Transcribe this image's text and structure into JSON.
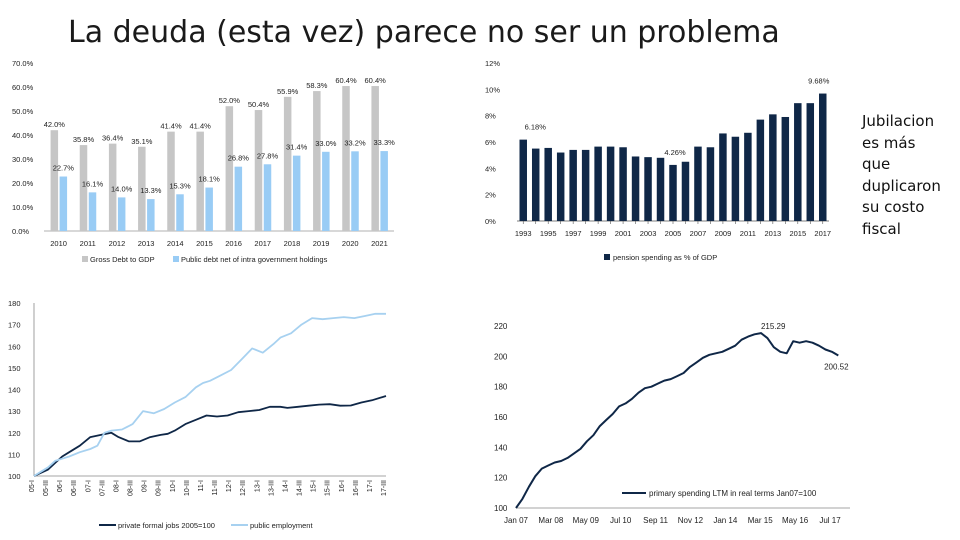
{
  "slide": {
    "title": "La deuda (esta vez) parece no ser un problema",
    "side_note": [
      "Jubilacion",
      "es más",
      "que",
      "duplicaron",
      "su costo",
      "fiscal"
    ]
  },
  "colors": {
    "gray_bar": "#c6c6c6",
    "light_blue": "#99ccf5",
    "navy": "#0f2747",
    "pale_line": "#a7d1f0"
  },
  "chart_data": [
    {
      "id": "debt",
      "type": "bar",
      "categories": [
        "2010",
        "2011",
        "2012",
        "2013",
        "2014",
        "2015",
        "2016",
        "2017",
        "2018",
        "2019",
        "2020",
        "2021"
      ],
      "series": [
        {
          "name": "Gross Debt to GDP",
          "values": [
            42.0,
            35.8,
            36.4,
            35.1,
            41.4,
            41.4,
            52.0,
            50.4,
            55.9,
            58.3,
            60.4,
            60.4
          ],
          "labels": [
            "42.0%",
            "35.8%",
            "36.4%",
            "35.1%",
            "41.4%",
            "41.4%",
            "52.0%",
            "50.4%",
            "55.9%",
            "58.3%",
            "60.4%",
            "60.4%"
          ]
        },
        {
          "name": "Public debt net of intra government holdings",
          "values": [
            22.7,
            16.1,
            14.0,
            13.3,
            15.3,
            18.1,
            26.8,
            27.8,
            31.4,
            33.0,
            33.2,
            33.3
          ],
          "labels": [
            "22.7%",
            "16.1%",
            "14.0%",
            "13.3%",
            "15.3%",
            "18.1%",
            "26.8%",
            "27.8%",
            "31.4%",
            "33.0%",
            "33.2%",
            "33.3%"
          ]
        }
      ],
      "yticks": [
        "70.0%",
        "60.0%",
        "50.0%",
        "40.0%",
        "30.0%",
        "20.0%",
        "10.0%",
        "0.0%"
      ],
      "ylim": [
        0,
        70
      ]
    },
    {
      "id": "pension",
      "type": "bar",
      "categories": [
        "1993",
        "1994",
        "1995",
        "1996",
        "1997",
        "1998",
        "1999",
        "2000",
        "2001",
        "2002",
        "2003",
        "2004",
        "2005",
        "2006",
        "2007",
        "2008",
        "2009",
        "2010",
        "2011",
        "2012",
        "2013",
        "2014",
        "2015",
        "2016",
        "2017"
      ],
      "xticks": [
        "1993",
        "1995",
        "1997",
        "1999",
        "2001",
        "2003",
        "2005",
        "2007",
        "2009",
        "2011",
        "2013",
        "2015",
        "2017"
      ],
      "series": [
        {
          "name": "pension spending as % of GDP",
          "values": [
            6.18,
            5.5,
            5.55,
            5.2,
            5.4,
            5.4,
            5.65,
            5.65,
            5.6,
            4.9,
            4.85,
            4.8,
            4.26,
            4.5,
            5.65,
            5.6,
            6.65,
            6.4,
            6.7,
            7.7,
            8.1,
            7.9,
            8.95,
            8.95,
            9.68
          ]
        }
      ],
      "annotations": [
        {
          "index": 0,
          "text": "6.18%"
        },
        {
          "index": 12,
          "text": "4.26%"
        },
        {
          "index": 24,
          "text": "9.68%"
        }
      ],
      "yticks": [
        "12%",
        "10%",
        "8%",
        "6%",
        "4%",
        "2%",
        "0%"
      ],
      "ylim": [
        0,
        12
      ]
    },
    {
      "id": "jobs",
      "type": "line",
      "ylim": [
        100,
        180
      ],
      "yticks": [
        "180",
        "170",
        "160",
        "150",
        "140",
        "130",
        "120",
        "110",
        "100"
      ],
      "xticks": [
        "05-I",
        "05-III",
        "06-I",
        "06-III",
        "07-I",
        "07-III",
        "08-I",
        "08-III",
        "09-I",
        "09-III",
        "10-I",
        "10-III",
        "11-I",
        "11-III",
        "12-I",
        "12-III",
        "13-I",
        "13-III",
        "14-I",
        "14-III",
        "15-I",
        "15-III",
        "16-I",
        "16-III",
        "17-I",
        "17-III"
      ],
      "series": [
        {
          "name": "private formal jobs 2005=100",
          "x": [
            0,
            2,
            4,
            6,
            8,
            10,
            13,
            16,
            19,
            22,
            24,
            27,
            30,
            33,
            36,
            38,
            40,
            43,
            46,
            49,
            52,
            55,
            58,
            61,
            64,
            67,
            70,
            72,
            75,
            78,
            81,
            84,
            87,
            90,
            93,
            96,
            100
          ],
          "y": [
            100,
            101.5,
            103,
            106,
            109,
            111,
            114,
            118,
            119,
            120,
            118,
            116,
            116,
            118,
            119,
            119.5,
            121,
            124,
            126,
            128,
            127.5,
            128,
            129.5,
            130,
            130.5,
            132,
            132,
            131.5,
            132,
            132.5,
            133,
            133.2,
            132.5,
            132.6,
            134,
            135,
            137
          ]
        },
        {
          "name": "public employment",
          "x": [
            0,
            2,
            4,
            6,
            8,
            10,
            13,
            16,
            18,
            20,
            22,
            25,
            28,
            31,
            34,
            37,
            40,
            43,
            46,
            48,
            50,
            53,
            56,
            59,
            62,
            65,
            68,
            70,
            73,
            76,
            79,
            82,
            85,
            88,
            91,
            94,
            97,
            100
          ],
          "y": [
            100,
            102,
            104,
            107,
            108,
            109,
            111,
            112.5,
            114,
            120,
            121,
            121.5,
            124,
            130,
            129,
            131,
            134,
            136.5,
            141,
            143,
            144,
            146.5,
            149,
            154,
            159,
            157,
            161,
            164,
            166,
            170,
            173,
            172.5,
            173,
            173.5,
            173,
            174,
            175,
            175
          ]
        }
      ]
    },
    {
      "id": "spending",
      "type": "line",
      "ylim": [
        100,
        220
      ],
      "yticks": [
        "220",
        "200",
        "180",
        "160",
        "140",
        "120",
        "100"
      ],
      "xticks": [
        "Jan 07",
        "Mar 08",
        "May 09",
        "Jul 10",
        "Sep 11",
        "Nov 12",
        "Jan 14",
        "Mar 15",
        "May 16",
        "Jul 17"
      ],
      "series": [
        {
          "name": "primary spending LTM in real terms Jan07=100",
          "x": [
            0,
            2,
            4,
            6,
            8,
            10,
            12,
            14,
            16,
            18,
            20,
            22,
            24,
            26,
            28,
            30,
            32,
            34,
            36,
            38,
            40,
            42,
            44,
            46,
            48,
            50,
            52,
            54,
            56,
            58,
            60,
            62,
            64,
            66,
            68,
            70,
            72,
            74,
            76,
            78,
            80,
            82,
            84,
            86,
            88,
            90,
            92,
            94,
            96,
            98,
            100
          ],
          "y": [
            100,
            106,
            114,
            121,
            126,
            128,
            130,
            131,
            133,
            136,
            139,
            144,
            148,
            154,
            158,
            162,
            167,
            169,
            172,
            176,
            179,
            180,
            182,
            184,
            185,
            187,
            189,
            193,
            196,
            199,
            201,
            202,
            203,
            205,
            207,
            211,
            213,
            214.5,
            215.29,
            212,
            206,
            203,
            202,
            210,
            209,
            210,
            209,
            207,
            204.5,
            203,
            200.52
          ]
        }
      ],
      "annotations": [
        {
          "index": 38,
          "text": "215.29"
        },
        {
          "index": 50,
          "text": "200.52"
        }
      ]
    }
  ]
}
